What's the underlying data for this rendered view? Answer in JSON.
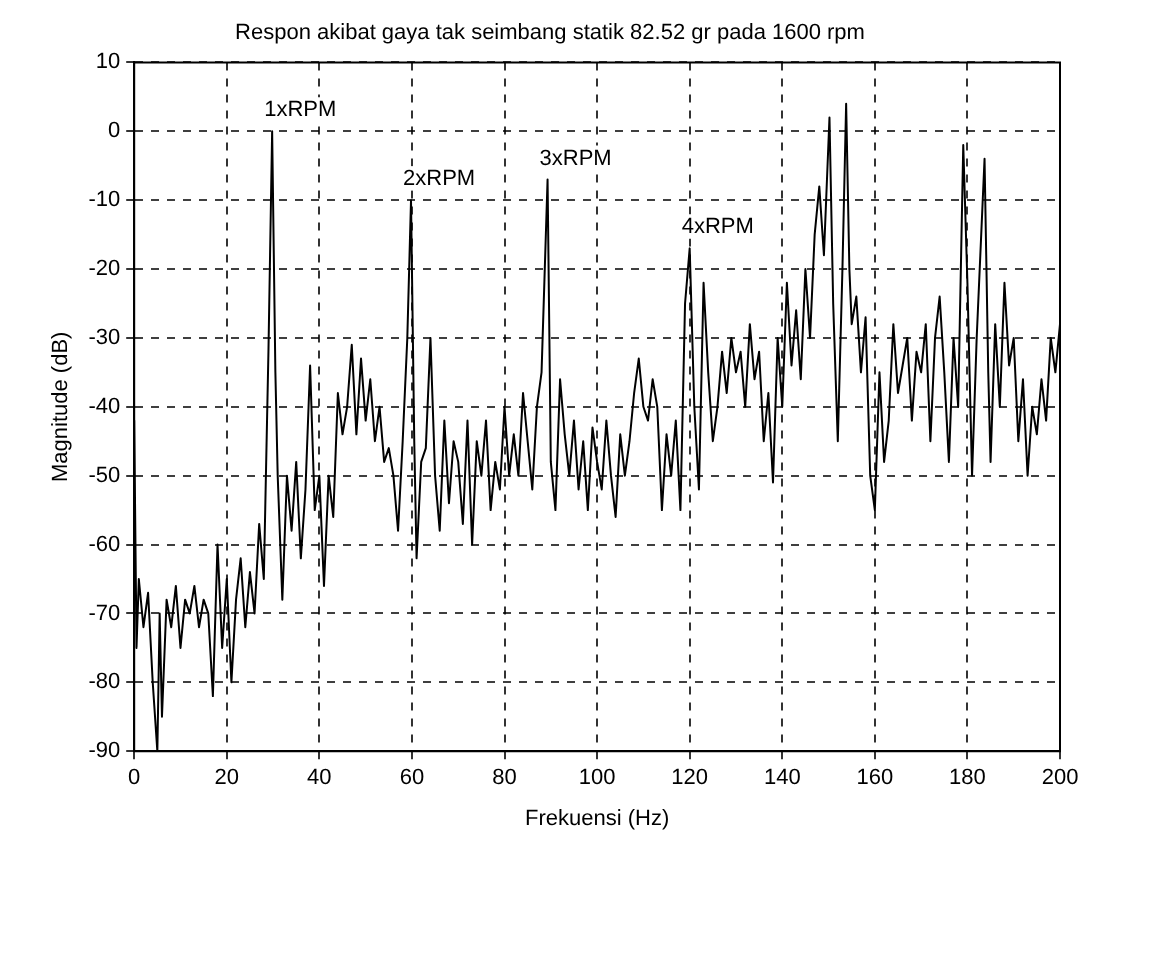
{
  "chart_data": {
    "type": "line",
    "title": "Respon akibat gaya tak seimbang statik 82.52 gr pada 1600 rpm",
    "xlabel": "Frekuensi (Hz)",
    "ylabel": "Magnitude (dB)",
    "x": [
      0,
      0.5,
      1,
      2,
      3,
      4,
      5,
      5.5,
      6,
      7,
      8,
      9,
      10,
      11,
      12,
      13,
      14,
      15,
      16,
      17,
      18,
      19,
      20,
      21,
      22,
      23,
      24,
      25,
      26,
      27,
      28,
      29,
      29.8,
      30.5,
      31,
      32,
      33,
      34,
      35,
      36,
      37,
      38,
      39,
      40,
      41,
      42,
      43,
      44,
      45,
      46,
      47,
      48,
      49,
      50,
      51,
      52,
      53,
      54,
      55,
      56,
      57,
      58,
      59,
      59.8,
      60.5,
      61,
      62,
      63,
      64,
      65,
      66,
      67,
      68,
      69,
      70,
      71,
      72,
      73,
      74,
      75,
      76,
      77,
      78,
      79,
      80,
      81,
      82,
      83,
      84,
      85,
      86,
      87,
      88,
      89.3,
      90,
      91,
      92,
      93,
      94,
      95,
      96,
      97,
      98,
      99,
      100,
      101,
      102,
      103,
      104,
      105,
      106,
      107,
      108,
      109,
      110,
      111,
      112,
      113,
      114,
      115,
      116,
      117,
      118,
      119,
      120,
      121,
      122,
      123,
      124,
      125,
      126,
      127,
      128,
      129,
      130,
      131,
      132,
      133,
      134,
      135,
      136,
      137,
      138,
      139,
      140,
      141,
      142,
      143,
      144,
      145,
      146,
      147,
      148,
      149,
      150.2,
      151,
      152,
      153,
      153.8,
      154.5,
      155,
      156,
      157,
      158,
      159,
      160,
      161,
      162,
      163,
      164,
      165,
      166,
      167,
      168,
      169,
      170,
      171,
      172,
      173,
      174,
      175,
      176,
      177,
      178,
      179.1,
      180,
      181,
      182,
      183.7,
      184.5,
      185,
      186,
      187,
      188,
      189,
      190,
      191,
      192,
      193,
      194,
      195,
      196,
      197,
      198,
      199,
      200
    ],
    "series": [
      {
        "color": "#000000",
        "values": [
          -42,
          -75,
          -65,
          -72,
          -67,
          -80,
          -90,
          -70,
          -85,
          -68,
          -72,
          -66,
          -75,
          -68,
          -70,
          -66,
          -72,
          -68,
          -70,
          -82,
          -60,
          -75,
          -65,
          -80,
          -68,
          -62,
          -72,
          -64,
          -70,
          -57,
          -65,
          -32,
          0,
          -35,
          -50,
          -68,
          -50,
          -58,
          -48,
          -62,
          -52,
          -34,
          -55,
          -50,
          -66,
          -50,
          -56,
          -38,
          -44,
          -40,
          -31,
          -44,
          -33,
          -42,
          -36,
          -45,
          -40,
          -48,
          -46,
          -50,
          -58,
          -45,
          -30,
          -10,
          -45,
          -62,
          -48,
          -46,
          -30,
          -50,
          -58,
          -42,
          -54,
          -45,
          -48,
          -57,
          -42,
          -60,
          -45,
          -50,
          -42,
          -55,
          -48,
          -52,
          -40,
          -50,
          -44,
          -50,
          -38,
          -45,
          -52,
          -40,
          -35,
          -7,
          -48,
          -55,
          -36,
          -44,
          -50,
          -42,
          -52,
          -45,
          -55,
          -43,
          -48,
          -52,
          -42,
          -50,
          -56,
          -44,
          -50,
          -45,
          -38,
          -33,
          -40,
          -42,
          -36,
          -40,
          -55,
          -44,
          -50,
          -42,
          -55,
          -25,
          -17,
          -40,
          -52,
          -22,
          -35,
          -45,
          -40,
          -32,
          -38,
          -30,
          -35,
          -32,
          -40,
          -28,
          -36,
          -32,
          -45,
          -38,
          -51,
          -30,
          -40,
          -22,
          -34,
          -26,
          -36,
          -20,
          -30,
          -15,
          -8,
          -18,
          2,
          -25,
          -45,
          -20,
          4,
          -20,
          -28,
          -24,
          -35,
          -27,
          -50,
          -55,
          -35,
          -48,
          -42,
          -28,
          -38,
          -34,
          -30,
          -42,
          -32,
          -35,
          -28,
          -45,
          -30,
          -24,
          -35,
          -48,
          -30,
          -40,
          -2,
          -22,
          -50,
          -30,
          -4,
          -35,
          -48,
          -28,
          -40,
          -22,
          -34,
          -30,
          -45,
          -36,
          -50,
          -40,
          -44,
          -36,
          -42,
          -30,
          -35,
          -28
        ]
      }
    ],
    "xlim": [
      0,
      200
    ],
    "xticks": [
      0,
      20,
      40,
      60,
      80,
      100,
      120,
      140,
      160,
      180,
      200
    ],
    "ylim": [
      -90,
      10
    ],
    "yticks": [
      -90,
      -80,
      -70,
      -60,
      -50,
      -40,
      -30,
      -20,
      -10,
      0,
      10
    ],
    "grid": true,
    "line_style": "solid",
    "marker": "none",
    "legend": false,
    "annotations": [
      {
        "text": "1xRPM",
        "x": 29.8,
        "y": 0
      },
      {
        "text": "2xRPM",
        "x": 59.8,
        "y": -10
      },
      {
        "text": "3xRPM",
        "x": 89.3,
        "y": -7
      },
      {
        "text": "4xRPM",
        "x": 120,
        "y": -17
      }
    ]
  }
}
